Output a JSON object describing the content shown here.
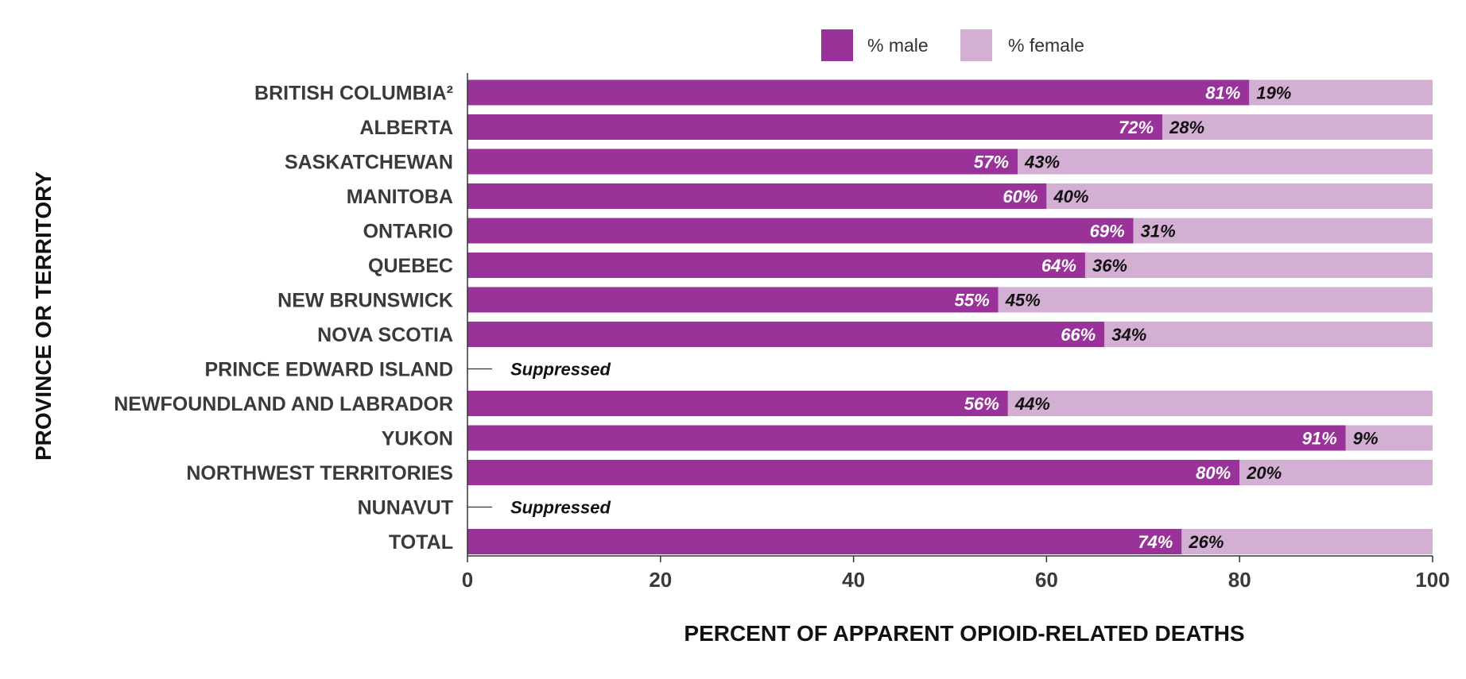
{
  "colors": {
    "male": "#993399",
    "female": "#d4afd4",
    "axis": "#333333"
  },
  "chart_data": {
    "type": "bar",
    "orientation": "horizontal",
    "stacked": true,
    "xlabel": "PERCENT OF APPARENT OPIOID-RELATED DEATHS",
    "ylabel": "PROVINCE OR TERRITORY",
    "xlim": [
      0,
      100
    ],
    "xticks": [
      "0",
      "20",
      "40",
      "60",
      "80",
      "100"
    ],
    "legend_position": "top",
    "grid": false,
    "categories": [
      "BRITISH COLUMBIA²",
      "ALBERTA",
      "SASKATCHEWAN",
      "MANITOBA",
      "ONTARIO",
      "QUEBEC",
      "NEW BRUNSWICK",
      "NOVA SCOTIA",
      "PRINCE EDWARD ISLAND",
      "NEWFOUNDLAND AND LABRADOR",
      "YUKON",
      "NORTHWEST TERRITORIES",
      "NUNAVUT",
      "TOTAL"
    ],
    "series": [
      {
        "name": "% male",
        "values": [
          81,
          72,
          57,
          60,
          69,
          64,
          55,
          66,
          null,
          56,
          91,
          80,
          null,
          74
        ],
        "labels": [
          "81%",
          "72%",
          "57%",
          "60%",
          "69%",
          "64%",
          "55%",
          "66%",
          null,
          "56%",
          "91%",
          "80%",
          null,
          "74%"
        ]
      },
      {
        "name": "% female",
        "values": [
          19,
          28,
          43,
          40,
          31,
          36,
          45,
          34,
          null,
          44,
          9,
          20,
          null,
          26
        ],
        "labels": [
          "19%",
          "28%",
          "43%",
          "40%",
          "31%",
          "36%",
          "45%",
          "34%",
          null,
          "44%",
          "9%",
          "20%",
          null,
          "26%"
        ]
      }
    ],
    "suppressed_text": "Suppressed"
  }
}
